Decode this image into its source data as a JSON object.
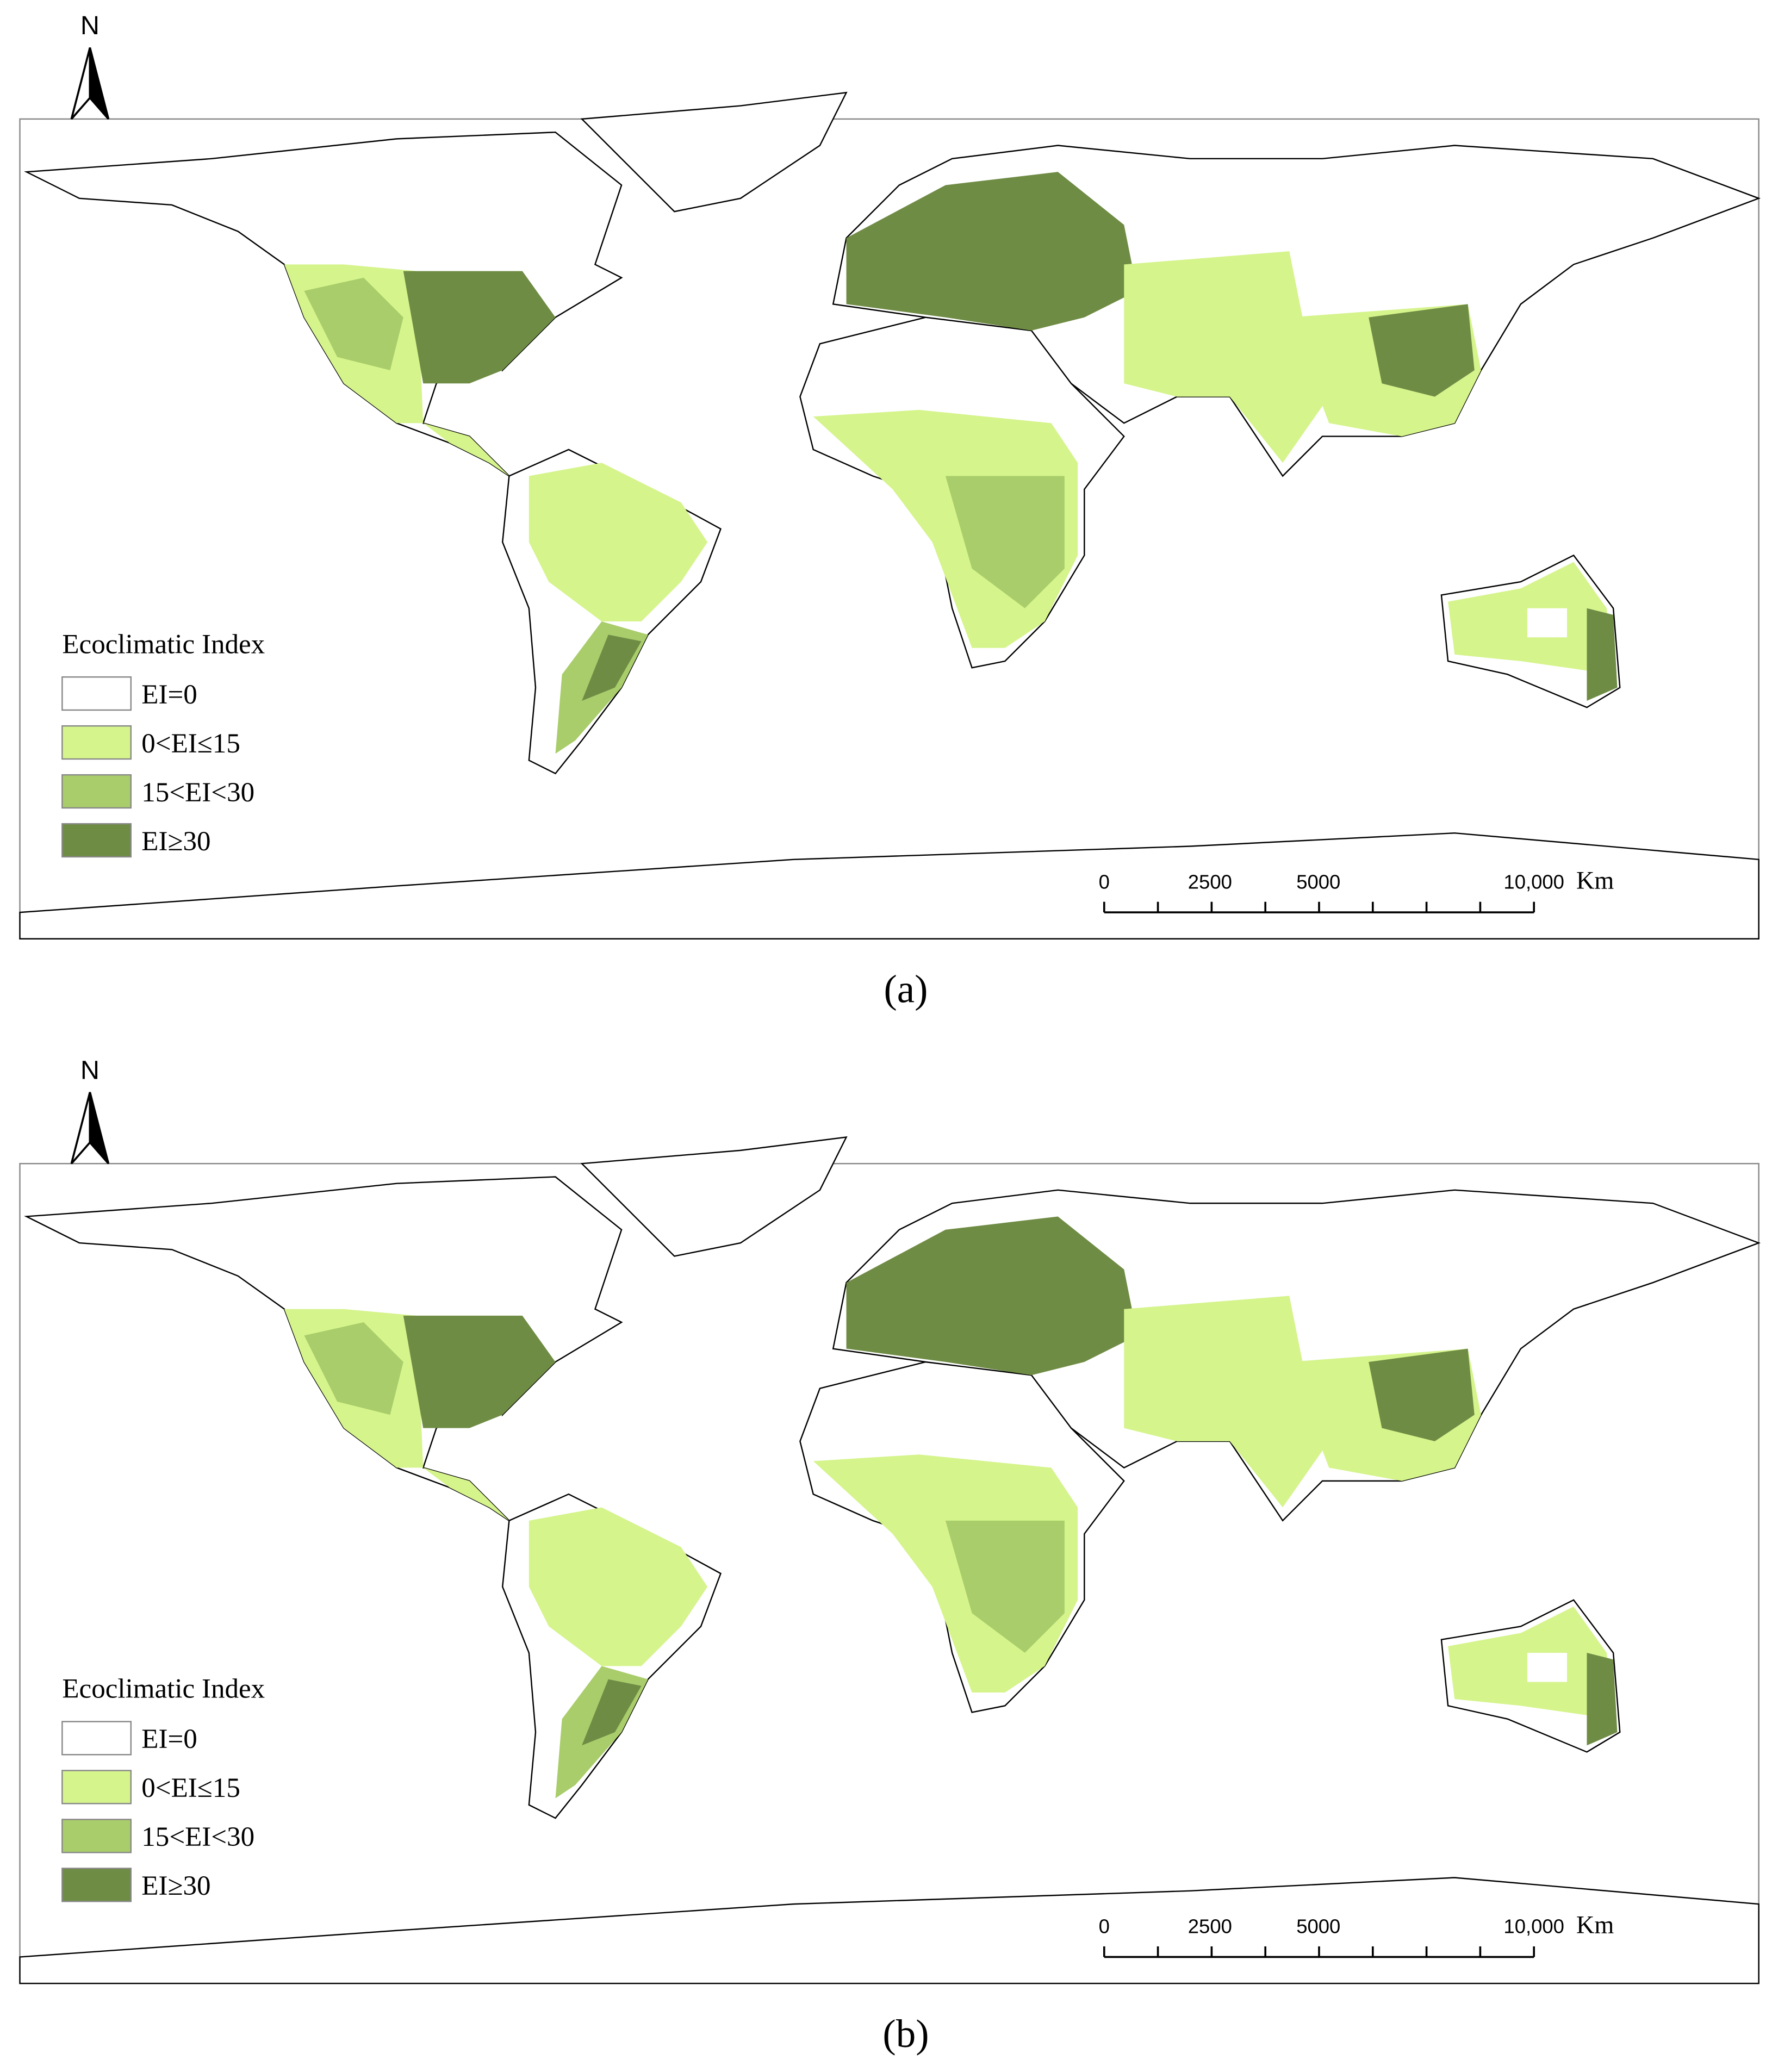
{
  "maps": [
    {
      "north_label": "N",
      "legend": {
        "title": "Ecoclimatic Index",
        "items": [
          "EI=0",
          "0<EI≤15",
          "15<EI<30",
          "EI≥30"
        ]
      },
      "scale_bar": {
        "labels": [
          "0",
          "2500",
          "5000",
          "10,000"
        ],
        "unit": "Km"
      },
      "caption": "(a)"
    },
    {
      "north_label": "N",
      "legend": {
        "title": "Ecoclimatic Index",
        "items": [
          "EI=0",
          "0<EI≤15",
          "15<EI<30",
          "EI≥30"
        ]
      },
      "scale_bar": {
        "labels": [
          "0",
          "2500",
          "5000",
          "10,000"
        ],
        "unit": "Km"
      },
      "caption": "(b)"
    }
  ]
}
